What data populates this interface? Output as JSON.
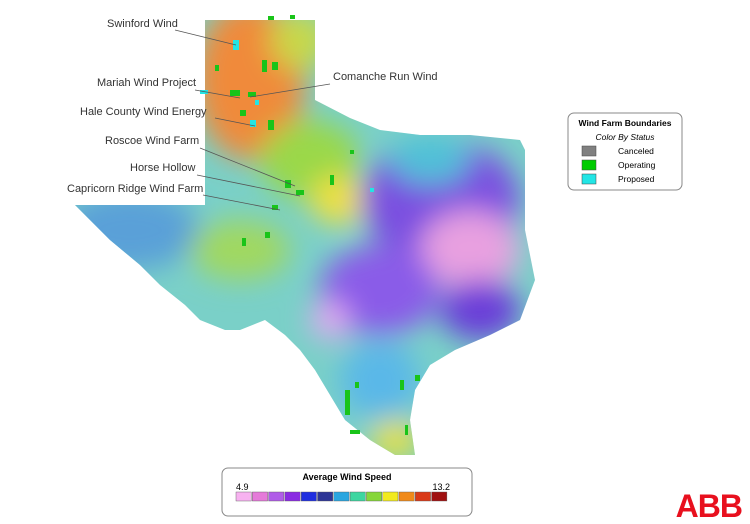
{
  "map": {
    "labels": [
      "Swinford Wind",
      "Mariah Wind Project",
      "Comanche Run Wind",
      "Hale County Wind Energy",
      "Roscoe Wind Farm",
      "Horse Hollow",
      "Capricorn Ridge Wind Farm"
    ]
  },
  "legend": {
    "title": "Wind Farm Boundaries",
    "subtitle": "Color By Status",
    "items": [
      {
        "label": "Canceled",
        "color": "#808080"
      },
      {
        "label": "Operating",
        "color": "#00cc00"
      },
      {
        "label": "Proposed",
        "color": "#22e5e5"
      }
    ]
  },
  "colorbar": {
    "title": "Average Wind Speed",
    "min": 4.9,
    "max": 13.2,
    "colors": [
      "#f7b2f0",
      "#e57ad9",
      "#b05ce8",
      "#8a2be2",
      "#1f2ee0",
      "#2d3596",
      "#2aa6e0",
      "#3dd6a0",
      "#86d63a",
      "#f2ea1f",
      "#f08a1a",
      "#d93a18",
      "#a01010"
    ]
  },
  "logo": "ABB"
}
